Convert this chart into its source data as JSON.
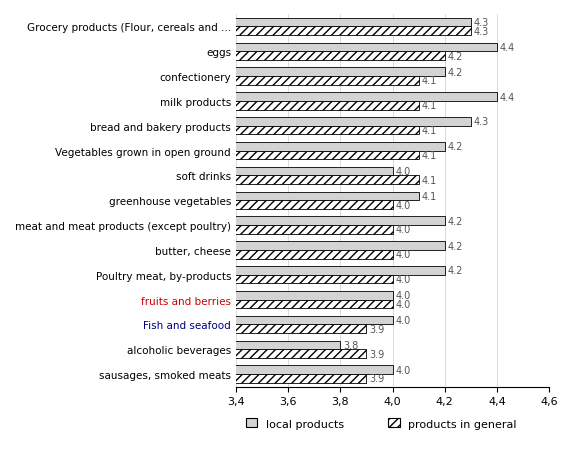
{
  "categories": [
    "Grocery products (Flour, cereals and ...",
    "eggs",
    "confectionery",
    "milk products",
    "bread and bakery products",
    "Vegetables grown in open ground",
    "soft drinks",
    "greenhouse vegetables",
    "meat and meat products (except poultry)",
    "butter, cheese",
    "Poultry meat, by-products",
    "fruits and berries",
    "Fish and seafood",
    "alcoholic beverages",
    "sausages, smoked meats"
  ],
  "local_values": [
    4.3,
    4.4,
    4.2,
    4.4,
    4.3,
    4.2,
    4.0,
    4.1,
    4.2,
    4.2,
    4.2,
    4.0,
    4.0,
    3.8,
    4.0
  ],
  "general_values": [
    4.3,
    4.2,
    4.1,
    4.1,
    4.1,
    4.1,
    4.1,
    4.0,
    4.0,
    4.0,
    4.0,
    4.0,
    3.9,
    3.9,
    3.9
  ],
  "label_colors": [
    "#000000",
    "#000000",
    "#000000",
    "#000000",
    "#000000",
    "#000000",
    "#000000",
    "#000000",
    "#000000",
    "#000000",
    "#000000",
    "#cc0000",
    "#000080",
    "#000000",
    "#000000"
  ],
  "xlim": [
    3.4,
    4.6
  ],
  "xticks": [
    3.4,
    3.6,
    3.8,
    4.0,
    4.2,
    4.4,
    4.6
  ],
  "bar_height": 0.35,
  "local_color": "#d3d3d3",
  "general_hatch": "////",
  "general_facecolor": "#ffffff",
  "general_edgecolor": "#000000",
  "local_edgecolor": "#000000",
  "legend_local": "local products",
  "legend_general": "products in general",
  "value_fontsize": 7.0,
  "label_fontsize": 7.5,
  "tick_fontsize": 8
}
